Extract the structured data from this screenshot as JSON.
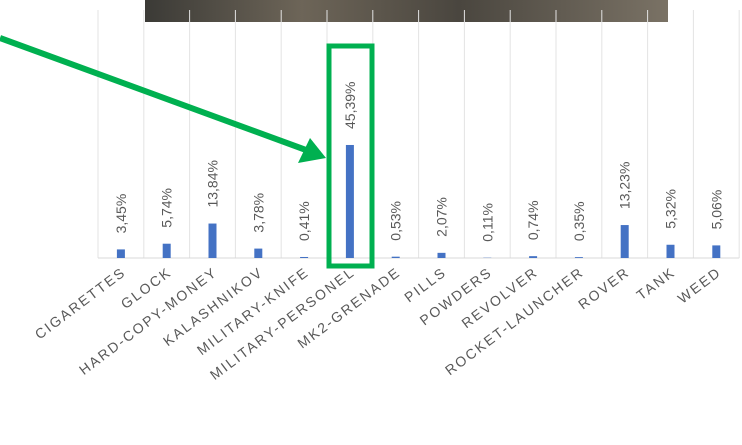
{
  "chart_data": {
    "type": "bar",
    "categories": [
      "CIGARETTES",
      "GLOCK",
      "HARD-COPY-MONEY",
      "KALASHNIKOV",
      "MILITARY-KNIFE",
      "MILITARY-PERSONEL",
      "MK2-GRENADE",
      "PILLS",
      "POWDERS",
      "REVOLVER",
      "ROCKET-LAUNCHER",
      "ROVER",
      "TANK",
      "WEED"
    ],
    "values": [
      3.45,
      5.74,
      13.84,
      3.78,
      0.41,
      45.39,
      0.53,
      2.07,
      0.11,
      0.74,
      0.35,
      13.23,
      5.32,
      5.06
    ],
    "value_labels": [
      "3,45%",
      "5,74%",
      "13,84%",
      "3,78%",
      "0,41%",
      "45,39%",
      "0,53%",
      "2,07%",
      "0,11%",
      "0,74%",
      "0,35%",
      "13,23%",
      "5,32%",
      "5,06%"
    ],
    "color": "#4472c4",
    "ylim": [
      0,
      100
    ]
  }
}
